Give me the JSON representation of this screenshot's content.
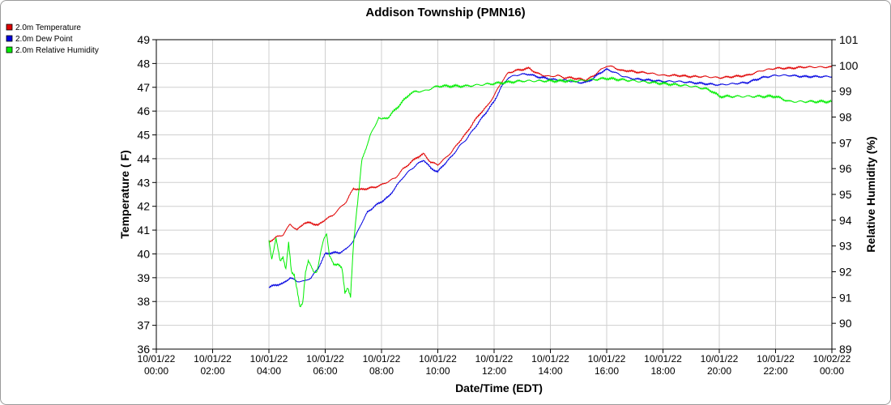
{
  "chart_data": {
    "type": "line",
    "title": "Addison Township (PMN16)",
    "xlabel": "Date/Time (EDT)",
    "ylabel_left": "Temperature ( F)",
    "ylabel_right": "Relative Humidity (%)",
    "xlim_hours": [
      0,
      24
    ],
    "ylim_left": [
      36,
      49
    ],
    "ylim_right": [
      89,
      101
    ],
    "x_ticks": [
      {
        "date": "10/01/22",
        "time": "00:00"
      },
      {
        "date": "10/01/22",
        "time": "02:00"
      },
      {
        "date": "10/01/22",
        "time": "04:00"
      },
      {
        "date": "10/01/22",
        "time": "06:00"
      },
      {
        "date": "10/01/22",
        "time": "08:00"
      },
      {
        "date": "10/01/22",
        "time": "10:00"
      },
      {
        "date": "10/01/22",
        "time": "12:00"
      },
      {
        "date": "10/01/22",
        "time": "14:00"
      },
      {
        "date": "10/01/22",
        "time": "16:00"
      },
      {
        "date": "10/01/22",
        "time": "18:00"
      },
      {
        "date": "10/01/22",
        "time": "20:00"
      },
      {
        "date": "10/01/22",
        "time": "22:00"
      },
      {
        "date": "10/02/22",
        "time": "00:00"
      }
    ],
    "y_ticks_left": [
      36,
      37,
      38,
      39,
      40,
      41,
      42,
      43,
      44,
      45,
      46,
      47,
      48,
      49
    ],
    "y_ticks_right": [
      89,
      90,
      91,
      92,
      93,
      94,
      95,
      96,
      97,
      98,
      99,
      100,
      101
    ],
    "grid": true,
    "legend_position": "top-left",
    "series": [
      {
        "name": "2.0m Temperature",
        "axis": "left",
        "color": "#e00000",
        "points": [
          [
            4.0,
            40.5
          ],
          [
            4.25,
            40.7
          ],
          [
            4.5,
            40.8
          ],
          [
            4.75,
            41.25
          ],
          [
            5.0,
            41.0
          ],
          [
            5.25,
            41.3
          ],
          [
            5.5,
            41.3
          ],
          [
            5.75,
            41.2
          ],
          [
            6.0,
            41.45
          ],
          [
            6.25,
            41.6
          ],
          [
            6.5,
            41.9
          ],
          [
            6.75,
            42.2
          ],
          [
            7.0,
            42.75
          ],
          [
            7.25,
            42.7
          ],
          [
            7.5,
            42.75
          ],
          [
            7.75,
            42.8
          ],
          [
            8.0,
            42.9
          ],
          [
            8.25,
            43.05
          ],
          [
            8.5,
            43.2
          ],
          [
            8.75,
            43.55
          ],
          [
            9.0,
            43.8
          ],
          [
            9.25,
            44.05
          ],
          [
            9.5,
            44.2
          ],
          [
            9.75,
            43.85
          ],
          [
            10.0,
            43.75
          ],
          [
            10.25,
            44.0
          ],
          [
            10.5,
            44.3
          ],
          [
            10.75,
            44.7
          ],
          [
            11.0,
            45.05
          ],
          [
            11.25,
            45.5
          ],
          [
            11.5,
            45.9
          ],
          [
            11.75,
            46.2
          ],
          [
            12.0,
            46.65
          ],
          [
            12.25,
            47.2
          ],
          [
            12.5,
            47.6
          ],
          [
            12.75,
            47.7
          ],
          [
            13.0,
            47.75
          ],
          [
            13.25,
            47.8
          ],
          [
            13.5,
            47.6
          ],
          [
            13.75,
            47.5
          ],
          [
            14.0,
            47.45
          ],
          [
            14.25,
            47.5
          ],
          [
            14.5,
            47.4
          ],
          [
            14.75,
            47.4
          ],
          [
            15.0,
            47.35
          ],
          [
            15.25,
            47.3
          ],
          [
            15.5,
            47.45
          ],
          [
            15.75,
            47.7
          ],
          [
            16.0,
            47.9
          ],
          [
            16.25,
            47.85
          ],
          [
            16.5,
            47.7
          ],
          [
            16.75,
            47.7
          ],
          [
            17.0,
            47.65
          ],
          [
            17.5,
            47.6
          ],
          [
            18.0,
            47.5
          ],
          [
            18.5,
            47.5
          ],
          [
            19.0,
            47.45
          ],
          [
            19.5,
            47.45
          ],
          [
            20.0,
            47.4
          ],
          [
            20.5,
            47.45
          ],
          [
            21.0,
            47.5
          ],
          [
            21.5,
            47.7
          ],
          [
            22.0,
            47.8
          ],
          [
            22.5,
            47.8
          ],
          [
            23.0,
            47.85
          ],
          [
            23.5,
            47.85
          ],
          [
            24.0,
            47.85
          ]
        ]
      },
      {
        "name": "2.0m Dew Point",
        "axis": "left",
        "color": "#0000e0",
        "points": [
          [
            4.0,
            38.6
          ],
          [
            4.25,
            38.7
          ],
          [
            4.5,
            38.75
          ],
          [
            4.75,
            39.0
          ],
          [
            5.0,
            38.85
          ],
          [
            5.25,
            38.85
          ],
          [
            5.5,
            39.0
          ],
          [
            5.75,
            39.4
          ],
          [
            6.0,
            40.0
          ],
          [
            6.25,
            40.05
          ],
          [
            6.5,
            40.05
          ],
          [
            6.75,
            40.2
          ],
          [
            7.0,
            40.55
          ],
          [
            7.25,
            41.2
          ],
          [
            7.5,
            41.75
          ],
          [
            7.75,
            42.0
          ],
          [
            8.0,
            42.2
          ],
          [
            8.25,
            42.4
          ],
          [
            8.5,
            42.8
          ],
          [
            8.75,
            43.2
          ],
          [
            9.0,
            43.5
          ],
          [
            9.25,
            43.75
          ],
          [
            9.5,
            43.95
          ],
          [
            9.75,
            43.6
          ],
          [
            10.0,
            43.45
          ],
          [
            10.25,
            43.8
          ],
          [
            10.5,
            44.1
          ],
          [
            10.75,
            44.5
          ],
          [
            11.0,
            44.8
          ],
          [
            11.25,
            45.2
          ],
          [
            11.5,
            45.6
          ],
          [
            11.75,
            46.0
          ],
          [
            12.0,
            46.4
          ],
          [
            12.25,
            47.0
          ],
          [
            12.5,
            47.4
          ],
          [
            12.75,
            47.5
          ],
          [
            13.0,
            47.55
          ],
          [
            13.25,
            47.55
          ],
          [
            13.5,
            47.45
          ],
          [
            13.75,
            47.4
          ],
          [
            14.0,
            47.35
          ],
          [
            14.25,
            47.3
          ],
          [
            14.5,
            47.3
          ],
          [
            14.75,
            47.25
          ],
          [
            15.0,
            47.2
          ],
          [
            15.25,
            47.2
          ],
          [
            15.5,
            47.35
          ],
          [
            15.75,
            47.6
          ],
          [
            16.0,
            47.75
          ],
          [
            16.25,
            47.65
          ],
          [
            16.5,
            47.5
          ],
          [
            16.75,
            47.4
          ],
          [
            17.0,
            47.35
          ],
          [
            17.5,
            47.3
          ],
          [
            18.0,
            47.25
          ],
          [
            18.5,
            47.25
          ],
          [
            19.0,
            47.2
          ],
          [
            19.5,
            47.15
          ],
          [
            20.0,
            47.1
          ],
          [
            20.5,
            47.15
          ],
          [
            21.0,
            47.2
          ],
          [
            21.5,
            47.4
          ],
          [
            22.0,
            47.5
          ],
          [
            22.5,
            47.5
          ],
          [
            23.0,
            47.45
          ],
          [
            23.5,
            47.45
          ],
          [
            24.0,
            47.45
          ]
        ]
      },
      {
        "name": "2.0m Relative Humidity",
        "axis": "right",
        "color": "#00ee00",
        "points": [
          [
            4.0,
            93.2
          ],
          [
            4.1,
            92.5
          ],
          [
            4.25,
            93.3
          ],
          [
            4.4,
            92.4
          ],
          [
            4.5,
            92.6
          ],
          [
            4.6,
            92.1
          ],
          [
            4.7,
            93.1
          ],
          [
            4.8,
            92.0
          ],
          [
            4.9,
            91.9
          ],
          [
            5.0,
            91.3
          ],
          [
            5.1,
            90.6
          ],
          [
            5.2,
            90.8
          ],
          [
            5.3,
            92.0
          ],
          [
            5.4,
            92.4
          ],
          [
            5.5,
            92.2
          ],
          [
            5.6,
            92.0
          ],
          [
            5.7,
            92.0
          ],
          [
            5.75,
            92.2
          ],
          [
            5.85,
            92.8
          ],
          [
            5.95,
            93.3
          ],
          [
            6.05,
            93.5
          ],
          [
            6.15,
            92.6
          ],
          [
            6.3,
            92.3
          ],
          [
            6.45,
            92.3
          ],
          [
            6.6,
            92.1
          ],
          [
            6.7,
            91.2
          ],
          [
            6.8,
            91.4
          ],
          [
            6.9,
            91.0
          ],
          [
            7.0,
            93.0
          ],
          [
            7.1,
            94.2
          ],
          [
            7.2,
            95.2
          ],
          [
            7.3,
            96.3
          ],
          [
            7.45,
            96.8
          ],
          [
            7.6,
            97.3
          ],
          [
            7.75,
            97.6
          ],
          [
            7.9,
            98.0
          ],
          [
            8.0,
            97.9
          ],
          [
            8.25,
            98.0
          ],
          [
            8.5,
            98.3
          ],
          [
            8.75,
            98.6
          ],
          [
            9.0,
            98.9
          ],
          [
            9.25,
            99.0
          ],
          [
            9.5,
            99.0
          ],
          [
            9.75,
            99.1
          ],
          [
            10.0,
            99.2
          ],
          [
            11.0,
            99.2
          ],
          [
            12.0,
            99.3
          ],
          [
            13.0,
            99.4
          ],
          [
            14.0,
            99.4
          ],
          [
            15.0,
            99.4
          ],
          [
            16.0,
            99.5
          ],
          [
            17.0,
            99.4
          ],
          [
            18.0,
            99.3
          ],
          [
            19.0,
            99.2
          ],
          [
            19.5,
            99.1
          ],
          [
            19.75,
            99.0
          ],
          [
            20.0,
            98.8
          ],
          [
            20.5,
            98.8
          ],
          [
            21.0,
            98.8
          ],
          [
            21.5,
            98.8
          ],
          [
            22.0,
            98.8
          ],
          [
            22.25,
            98.7
          ],
          [
            22.5,
            98.6
          ],
          [
            23.0,
            98.6
          ],
          [
            23.5,
            98.6
          ],
          [
            24.0,
            98.6
          ]
        ]
      }
    ]
  }
}
